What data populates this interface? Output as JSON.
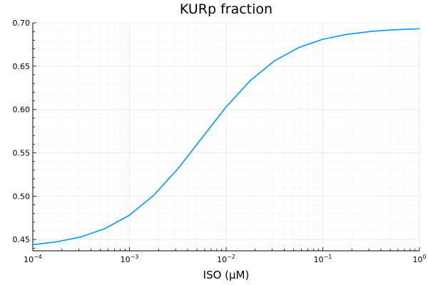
{
  "chart_data": {
    "type": "line",
    "title": "KURp fraction",
    "xlabel": "ISO (μM)",
    "ylabel": "",
    "xscale": "log",
    "xlim": [
      0.0001,
      1
    ],
    "ylim": [
      0.437,
      0.7
    ],
    "grid": true,
    "legend": "none",
    "line_color": "#009AFA",
    "x_tick_labels": [
      {
        "value": 0.0001,
        "base": "10",
        "exp": "−4"
      },
      {
        "value": 0.001,
        "base": "10",
        "exp": "−3"
      },
      {
        "value": 0.01,
        "base": "10",
        "exp": "−2"
      },
      {
        "value": 0.1,
        "base": "10",
        "exp": "−1"
      },
      {
        "value": 1,
        "base": "10",
        "exp": "0"
      }
    ],
    "y_ticks": [
      0.45,
      0.5,
      0.55,
      0.6,
      0.65,
      0.7
    ],
    "y_tick_labels": [
      "0.45",
      "0.50",
      "0.55",
      "0.60",
      "0.65",
      "0.70"
    ],
    "series": [
      {
        "x": [
          0.0001,
          0.0001778,
          0.0003162,
          0.0005623,
          0.001,
          0.001778,
          0.003162,
          0.005623,
          0.01,
          0.01778,
          0.03162,
          0.05623,
          0.1,
          0.1778,
          0.3162,
          0.5623,
          1
        ],
        "y": [
          0.444,
          0.4474,
          0.4531,
          0.4628,
          0.4781,
          0.501,
          0.5315,
          0.5673,
          0.603,
          0.6334,
          0.6561,
          0.6714,
          0.681,
          0.6867,
          0.6901,
          0.692,
          0.6931
        ]
      }
    ]
  }
}
